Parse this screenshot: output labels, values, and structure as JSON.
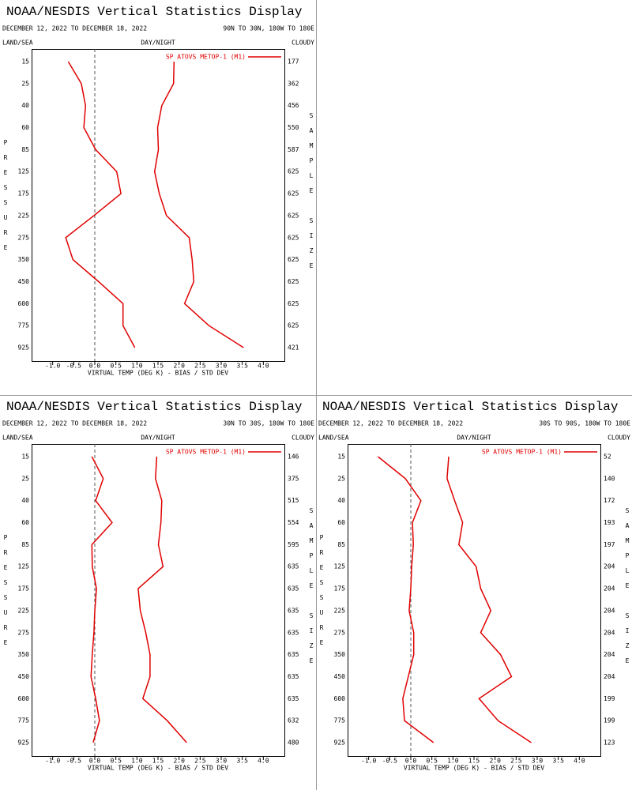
{
  "chart_data": [
    {
      "type": "line",
      "title": "NOAA/NESDIS Vertical Statistics Display",
      "date_range": "DECEMBER 12, 2022 TO DECEMBER 18, 2022",
      "region": "90N TO 30N, 180W TO 180E",
      "land_sea_label": "LAND/SEA",
      "day_night_label": "DAY/NIGHT",
      "cloudy_label": "CLOUDY",
      "ylabel": "PRESSURE",
      "y2label": "SAMPLE SIZE",
      "xlabel": "VIRTUAL TEMP (DEG K) - BIAS / STD DEV",
      "categories": [
        "15",
        "25",
        "40",
        "60",
        "85",
        "125",
        "175",
        "225",
        "275",
        "350",
        "450",
        "600",
        "775",
        "925"
      ],
      "sample_sizes": [
        177,
        362,
        456,
        550,
        587,
        625,
        625,
        625,
        625,
        625,
        625,
        625,
        625,
        421
      ],
      "series": [
        {
          "name": "SP ATOVS METOP-1 (M1)",
          "color": "#e00000",
          "bias": [
            -0.63,
            -0.32,
            -0.22,
            -0.26,
            0.02,
            0.52,
            0.62,
            -0.02,
            -0.69,
            -0.52,
            0.09,
            0.67,
            0.67,
            0.95
          ],
          "std_dev": [
            1.88,
            1.87,
            1.59,
            1.49,
            1.51,
            1.42,
            1.53,
            1.7,
            2.24,
            2.31,
            2.35,
            2.13,
            2.71,
            3.53
          ]
        }
      ],
      "xlim": [
        -1.5,
        4.5
      ],
      "xticks": [
        {
          "value": -1,
          "label": "-1.0"
        },
        -0.5,
        {
          "value": 0,
          "label": "0.0"
        },
        0.5,
        {
          "value": 1,
          "label": "1.0"
        },
        1.5,
        {
          "value": 2,
          "label": "2.0"
        },
        2.5,
        {
          "value": 3,
          "label": "3.0"
        },
        3.5,
        {
          "value": 4,
          "label": "4.0"
        }
      ]
    },
    {
      "type": "line",
      "title": "NOAA/NESDIS Vertical Statistics Display",
      "date_range": "DECEMBER 12, 2022 TO DECEMBER 18, 2022",
      "region": "30N TO 30S, 180W TO 180E",
      "land_sea_label": "LAND/SEA",
      "day_night_label": "DAY/NIGHT",
      "cloudy_label": "CLOUDY",
      "ylabel": "PRESSURE",
      "y2label": "SAMPLE SIZE",
      "xlabel": "VIRTUAL TEMP (DEG K) - BIAS / STD DEV",
      "categories": [
        "15",
        "25",
        "40",
        "60",
        "85",
        "125",
        "175",
        "225",
        "275",
        "350",
        "450",
        "600",
        "775",
        "925"
      ],
      "sample_sizes": [
        146,
        375,
        515,
        554,
        595,
        635,
        635,
        635,
        635,
        635,
        635,
        635,
        632,
        480
      ],
      "series": [
        {
          "name": "SP ATOVS METOP-1 (M1)",
          "color": "#e00000",
          "bias": [
            -0.07,
            0.2,
            0.02,
            0.41,
            -0.07,
            -0.06,
            0.04,
            0,
            -0.02,
            -0.06,
            -0.09,
            0.02,
            0.11,
            -0.04
          ],
          "std_dev": [
            1.47,
            1.44,
            1.59,
            1.57,
            1.51,
            1.62,
            1.03,
            1.08,
            1.21,
            1.31,
            1.31,
            1.14,
            1.72,
            2.18
          ]
        }
      ],
      "xlim": [
        -1.5,
        4.5
      ],
      "xticks": [
        {
          "value": -1,
          "label": "-1.0"
        },
        -0.5,
        {
          "value": 0,
          "label": "0.0"
        },
        0.5,
        {
          "value": 1,
          "label": "1.0"
        },
        1.5,
        {
          "value": 2,
          "label": "2.0"
        },
        2.5,
        {
          "value": 3,
          "label": "3.0"
        },
        3.5,
        {
          "value": 4,
          "label": "4.0"
        }
      ]
    },
    {
      "type": "line",
      "title": "NOAA/NESDIS Vertical Statistics Display",
      "date_range": "DECEMBER 12, 2022 TO DECEMBER 18, 2022",
      "region": "30S TO 90S, 180W TO 180E",
      "land_sea_label": "LAND/SEA",
      "day_night_label": "DAY/NIGHT",
      "cloudy_label": "CLOUDY",
      "ylabel": "PRESSURE",
      "y2label": "SAMPLE SIZE",
      "xlabel": "VIRTUAL TEMP (DEG K) - BIAS / STD DEV",
      "categories": [
        "15",
        "25",
        "40",
        "60",
        "85",
        "125",
        "175",
        "225",
        "275",
        "350",
        "450",
        "600",
        "775",
        "925"
      ],
      "sample_sizes": [
        52,
        140,
        172,
        193,
        197,
        204,
        204,
        204,
        204,
        204,
        204,
        199,
        199,
        123
      ],
      "series": [
        {
          "name": "SP ATOVS METOP-1 (M1)",
          "color": "#e00000",
          "bias": [
            -0.78,
            -0.13,
            0.24,
            0.04,
            0.06,
            0.02,
            0,
            -0.04,
            0.07,
            0.07,
            -0.06,
            -0.19,
            -0.15,
            0.54
          ],
          "std_dev": [
            0.9,
            0.86,
            1.04,
            1.23,
            1.14,
            1.55,
            1.66,
            1.9,
            1.66,
            2.13,
            2.39,
            1.62,
            2.07,
            2.86
          ]
        }
      ],
      "xlim": [
        -1.5,
        4.5
      ],
      "xticks": [
        {
          "value": -1,
          "label": "-1.0"
        },
        -0.5,
        {
          "value": 0,
          "label": "0.0"
        },
        0.5,
        {
          "value": 1,
          "label": "1.0"
        },
        1.5,
        {
          "value": 2,
          "label": "2.0"
        },
        2.5,
        {
          "value": 3,
          "label": "3.0"
        },
        3.5,
        {
          "value": 4,
          "label": "4.0"
        }
      ]
    }
  ]
}
